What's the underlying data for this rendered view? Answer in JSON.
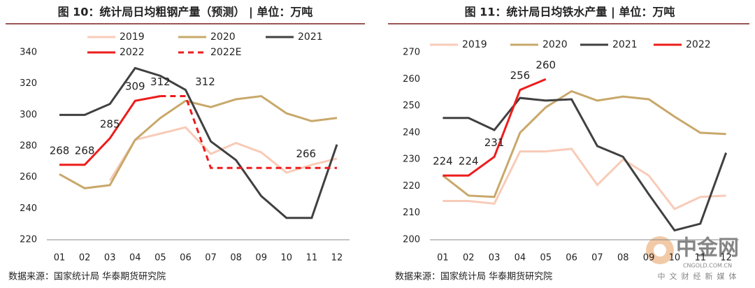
{
  "chart_data": [
    {
      "type": "line",
      "title": "图 10：统计局日均粗钢产量（预测） | 单位：万吨",
      "source": "数据来源：国家统计局 华泰期货研究院",
      "categories": [
        "01",
        "02",
        "03",
        "04",
        "05",
        "06",
        "07",
        "08",
        "09",
        "10",
        "11",
        "12"
      ],
      "ylim": [
        220,
        340
      ],
      "yticks": [
        220,
        240,
        260,
        280,
        300,
        320,
        340
      ],
      "series": [
        {
          "name": "2019",
          "color": "#f8cbb8",
          "values": [
            null,
            null,
            258,
            284,
            288,
            292,
            275,
            282,
            276,
            263,
            268,
            272
          ]
        },
        {
          "name": "2020",
          "color": "#c8a86a",
          "values": [
            262,
            253,
            255,
            284,
            298,
            309,
            305,
            310,
            312,
            301,
            296,
            298
          ]
        },
        {
          "name": "2021",
          "color": "#404040",
          "values": [
            300,
            300,
            307,
            330,
            325,
            316,
            283,
            271,
            248,
            234,
            234,
            281
          ]
        },
        {
          "name": "2022",
          "color": "#ee1c1c",
          "values": [
            268,
            268,
            285,
            309,
            312,
            null,
            null,
            null,
            null,
            null,
            null,
            null
          ],
          "value_labels": [
            "268",
            "268",
            "285",
            "309",
            "312",
            null,
            null,
            null,
            null,
            null,
            null,
            null
          ]
        },
        {
          "name": "2022E",
          "color": "#ee1c1c",
          "dashed": true,
          "values": [
            null,
            null,
            null,
            null,
            312,
            312,
            266,
            266,
            266,
            266,
            266,
            266
          ],
          "value_labels": [
            null,
            null,
            null,
            null,
            null,
            "312",
            null,
            null,
            null,
            "266",
            null,
            null
          ]
        }
      ]
    },
    {
      "type": "line",
      "title": "图 11：统计局日均铁水产量 | 单位：万吨",
      "source": "数据来源：国家统计局 华泰期货研究院",
      "categories": [
        "01",
        "02",
        "03",
        "04",
        "05",
        "06",
        "07",
        "08",
        "09",
        "10",
        "11",
        "12"
      ],
      "ylim": [
        200,
        270
      ],
      "yticks": [
        200,
        210,
        220,
        230,
        240,
        250,
        260,
        270
      ],
      "series": [
        {
          "name": "2019",
          "color": "#f8cbb8",
          "values": [
            214.5,
            214.5,
            213.5,
            233,
            233,
            234,
            220.5,
            230,
            224,
            211.5,
            216,
            216.5
          ]
        },
        {
          "name": "2020",
          "color": "#c8a86a",
          "values": [
            224,
            216.5,
            216,
            240,
            249.5,
            255.5,
            252,
            253.5,
            252.5,
            246,
            240,
            239.5
          ]
        },
        {
          "name": "2021",
          "color": "#404040",
          "values": [
            245.5,
            245.5,
            241,
            253,
            252,
            252.5,
            235,
            231,
            217,
            203.5,
            206,
            232.5
          ]
        },
        {
          "name": "2022",
          "color": "#ee1c1c",
          "values": [
            224,
            224,
            231,
            256,
            260,
            null,
            null,
            null,
            null,
            null,
            null,
            null
          ],
          "value_labels": [
            "224",
            "224",
            "231",
            "256",
            "260",
            null,
            null,
            null,
            null,
            null,
            null,
            null
          ]
        }
      ]
    }
  ],
  "watermark": {
    "name": "中金网",
    "site": "CNGOLD.COM.CN",
    "slogan": "中文财经新媒体"
  }
}
